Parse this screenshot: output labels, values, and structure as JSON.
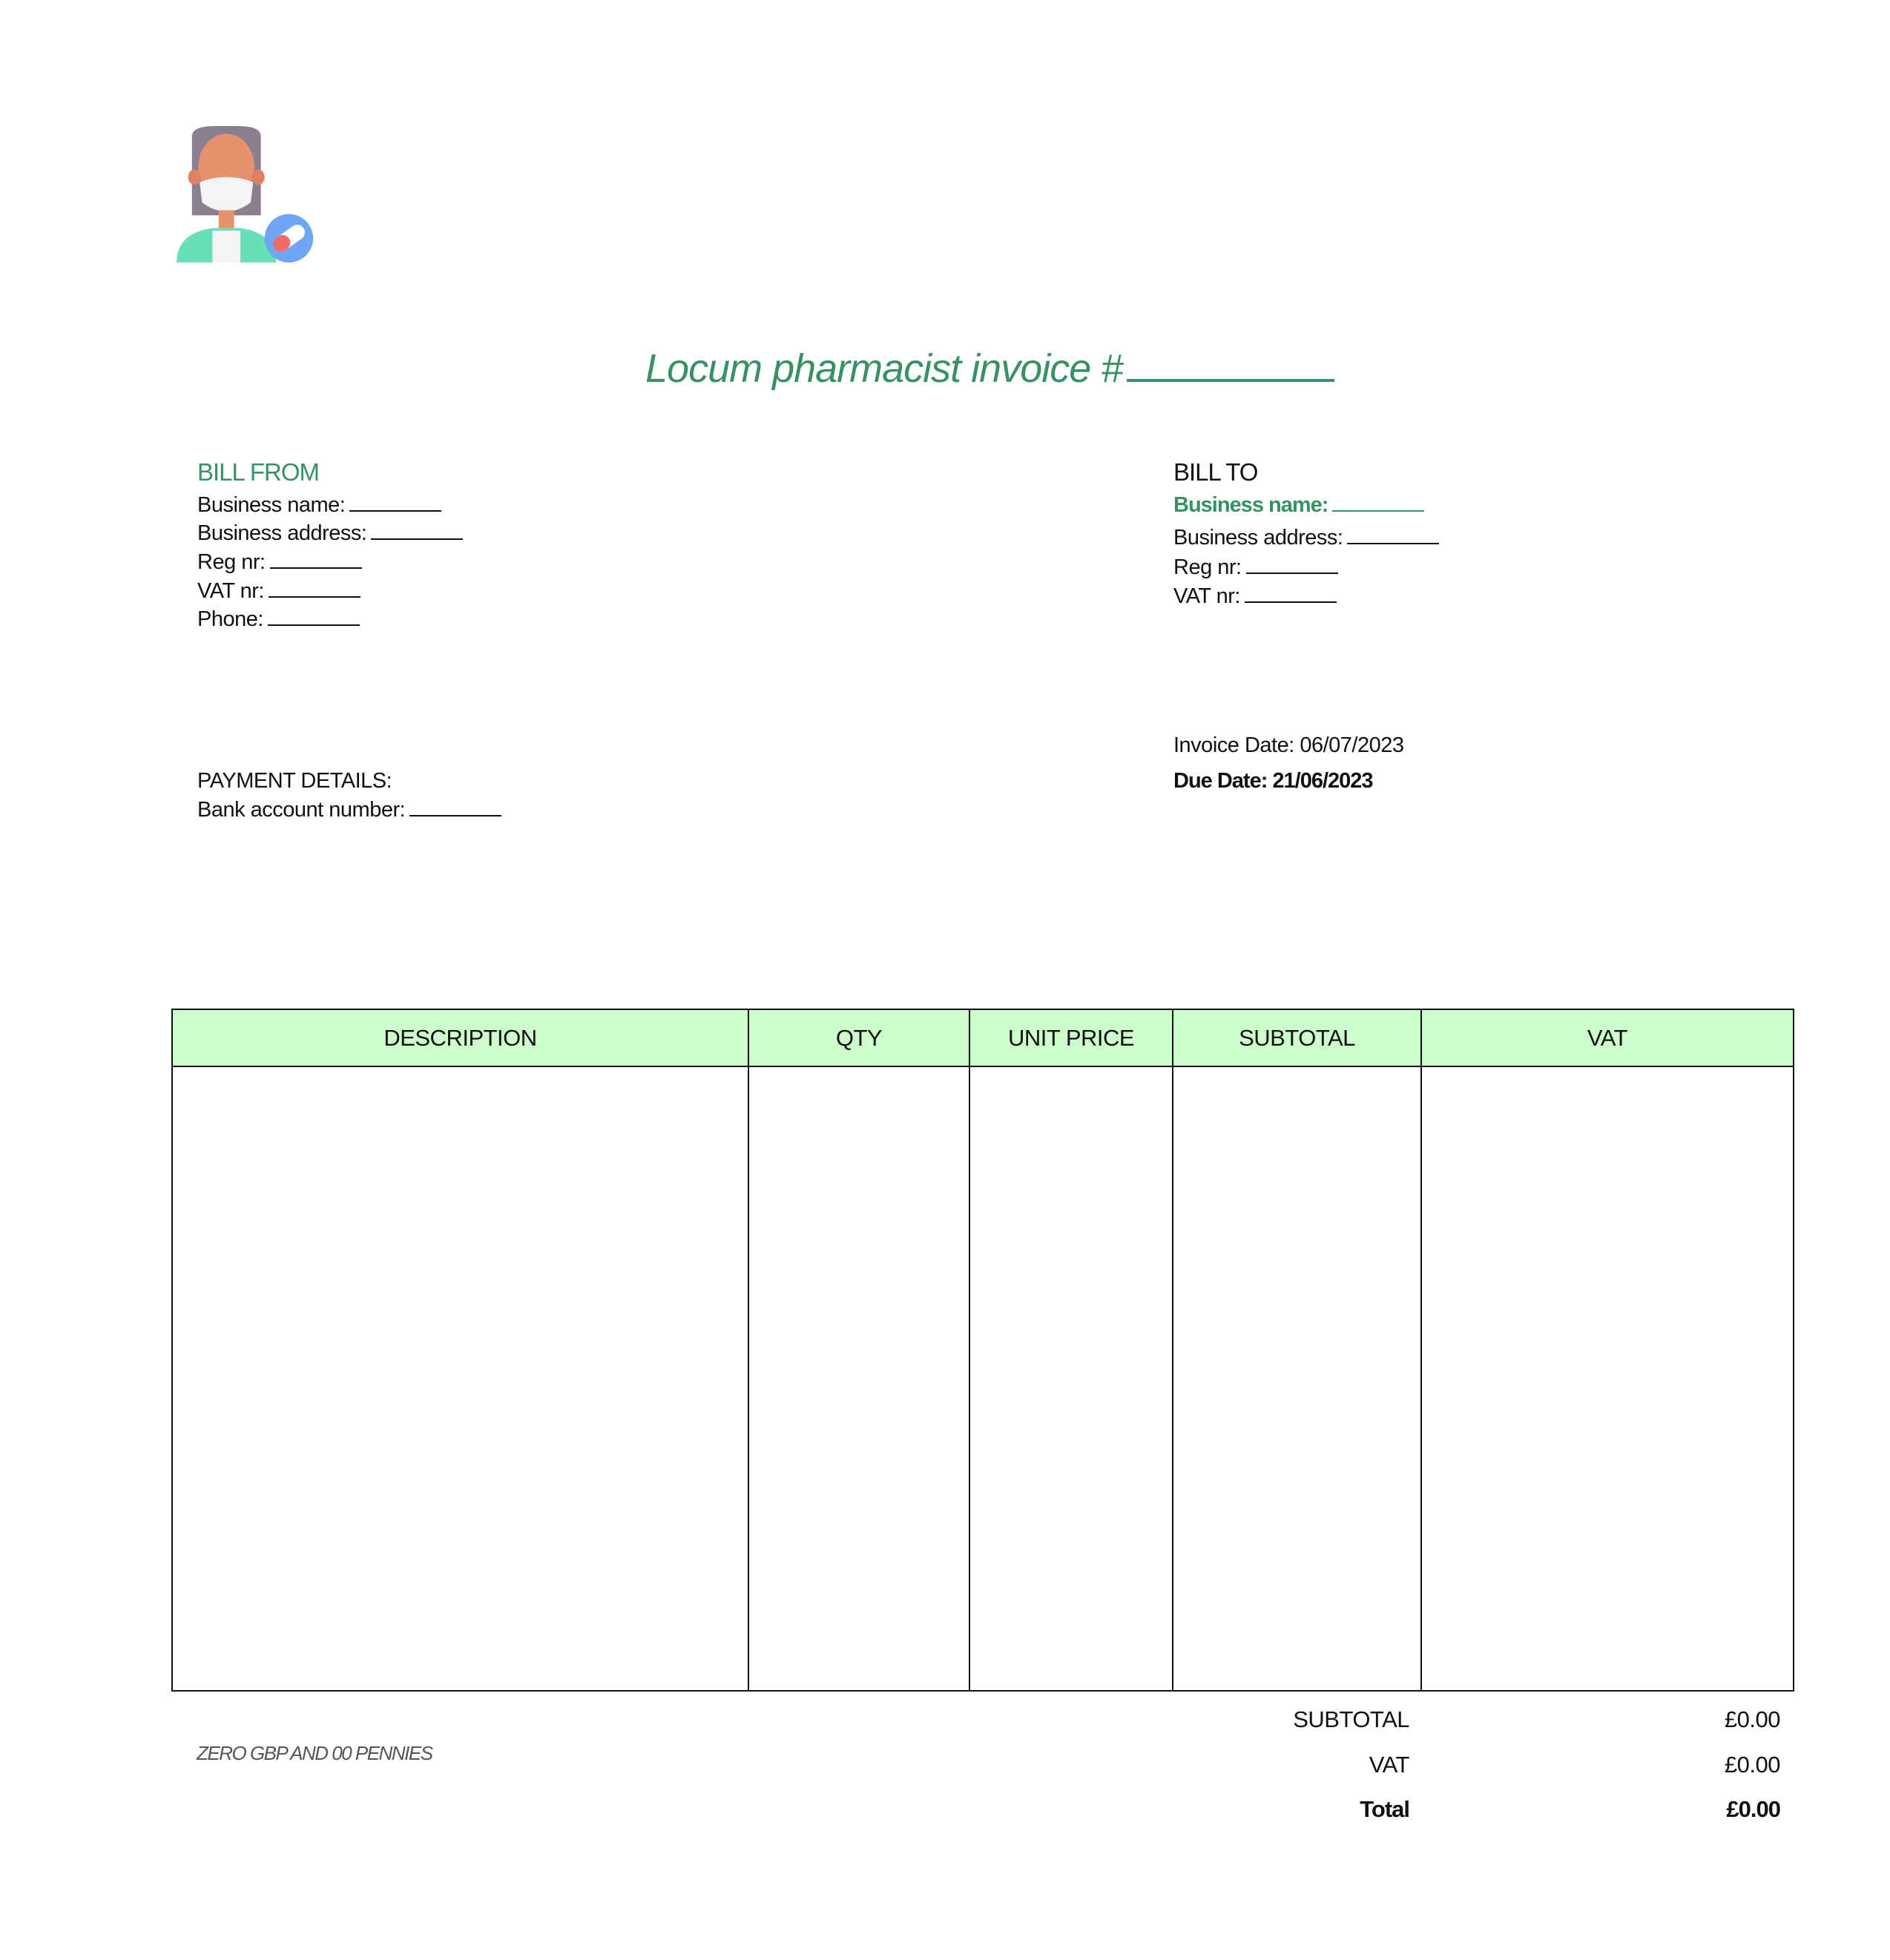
{
  "logo": {
    "icon": "masked-pharmacist-with-pill-icon"
  },
  "title": "Locum pharmacist invoice #",
  "bill_from": {
    "heading": "BILL FROM",
    "lines": [
      "Business name:",
      "Business address:",
      "Reg nr:",
      "VAT nr:",
      "Phone:"
    ]
  },
  "bill_to": {
    "heading": "BILL TO",
    "lines": [
      "Business name:",
      "Business address:",
      "Reg nr:",
      "VAT nr:"
    ]
  },
  "dates": {
    "invoice_date": "Invoice Date: 06/07/2023",
    "due_date": "Due Date: 21/06/2023"
  },
  "payment": {
    "heading": "PAYMENT DETAILS:",
    "bank": "Bank account number:"
  },
  "table": {
    "headers": [
      "DESCRIPTION",
      "QTY",
      "UNIT PRICE",
      "SUBTOTAL",
      "VAT"
    ]
  },
  "amount_in_words": "ZERO GBP AND 00 PENNIES",
  "totals": {
    "subtotal_label": "SUBTOTAL",
    "subtotal": "£0.00",
    "vat_label": "VAT",
    "vat": "£0.00",
    "total_label": "Total",
    "total": "£0.00"
  },
  "colors": {
    "accent": "#379164",
    "header_bg": "#ccffcc"
  }
}
